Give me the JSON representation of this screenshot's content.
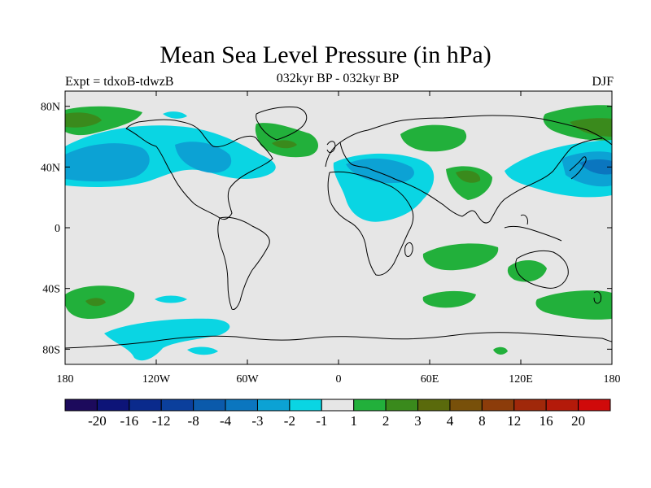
{
  "title": "Mean Sea Level Pressure (in hPa)",
  "experiment": "Expt = tdxoB-tdwzB",
  "period": "032kyr BP - 032kyr BP",
  "season": "DJF",
  "lat_ticks": [
    {
      "value": 80,
      "label": "80N"
    },
    {
      "value": 40,
      "label": "40N"
    },
    {
      "value": 0,
      "label": "0"
    },
    {
      "value": -40,
      "label": "40S"
    },
    {
      "value": -80,
      "label": "80S"
    }
  ],
  "lon_ticks": [
    {
      "value": -180,
      "label": "180"
    },
    {
      "value": -120,
      "label": "120W"
    },
    {
      "value": -60,
      "label": "60W"
    },
    {
      "value": 0,
      "label": "0"
    },
    {
      "value": 60,
      "label": "60E"
    },
    {
      "value": 120,
      "label": "120E"
    },
    {
      "value": 180,
      "label": "180"
    }
  ],
  "colorbar": {
    "colors": [
      "#1c0a5c",
      "#0d1478",
      "#0a2a8c",
      "#0b3f9c",
      "#0b5aab",
      "#0b76bf",
      "#0ca2d4",
      "#0ad5e3",
      "#e6e6e6",
      "#22b03b",
      "#3a8a1c",
      "#5a6a0c",
      "#78500a",
      "#8c3c0a",
      "#a0280a",
      "#b41a0a",
      "#d00a0a"
    ],
    "labels": [
      "-20",
      "-16",
      "-12",
      "-8",
      "-4",
      "-3",
      "-2",
      "-1",
      "1",
      "2",
      "3",
      "4",
      "8",
      "12",
      "16",
      "20"
    ]
  },
  "colors": {
    "background": "#e6e6e6",
    "neg1": "#0ad5e3",
    "neg2": "#0ca2d4",
    "neg3": "#0b76bf",
    "pos1": "#22b03b",
    "pos2": "#3a8a1c",
    "pos3": "#5a6a0c",
    "coast": "#000000"
  }
}
